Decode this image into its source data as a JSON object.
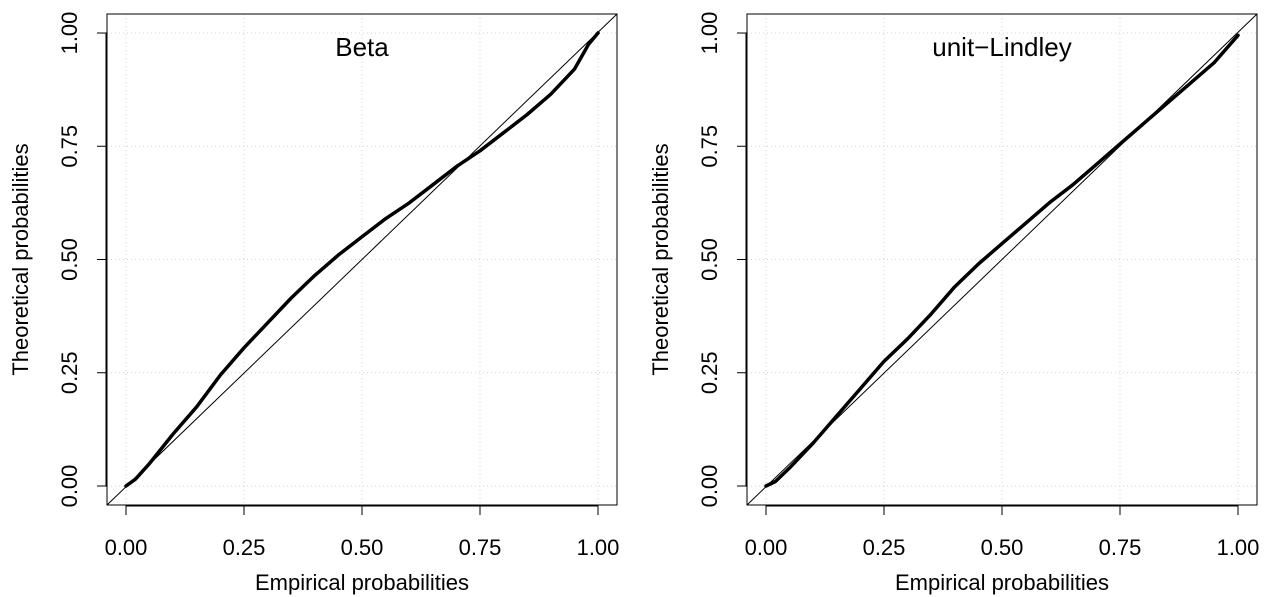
{
  "chart_data": [
    {
      "type": "line",
      "title": "Beta",
      "xlabel": "Empirical probabilities",
      "ylabel": "Theoretical probabilities",
      "xlim": [
        0,
        1
      ],
      "ylim": [
        0,
        1
      ],
      "xticks": [
        "0.00",
        "0.25",
        "0.50",
        "0.75",
        "1.00"
      ],
      "yticks": [
        "0.00",
        "0.25",
        "0.50",
        "0.75",
        "1.00"
      ],
      "grid": true,
      "reference_line": "y = x",
      "series": [
        {
          "x": [
            0.0,
            0.02,
            0.05,
            0.1,
            0.15,
            0.2,
            0.25,
            0.3,
            0.35,
            0.4,
            0.45,
            0.5,
            0.55,
            0.6,
            0.65,
            0.7,
            0.75,
            0.8,
            0.85,
            0.9,
            0.95,
            0.98,
            1.0
          ],
          "y": [
            0.0,
            0.015,
            0.05,
            0.115,
            0.175,
            0.245,
            0.305,
            0.36,
            0.415,
            0.465,
            0.51,
            0.55,
            0.59,
            0.625,
            0.665,
            0.705,
            0.74,
            0.78,
            0.82,
            0.865,
            0.92,
            0.975,
            1.0
          ]
        }
      ]
    },
    {
      "type": "line",
      "title": "unit−Lindley",
      "xlabel": "Empirical probabilities",
      "ylabel": "Theoretical probabilities",
      "xlim": [
        0,
        1
      ],
      "ylim": [
        0,
        1
      ],
      "xticks": [
        "0.00",
        "0.25",
        "0.50",
        "0.75",
        "1.00"
      ],
      "yticks": [
        "0.00",
        "0.25",
        "0.50",
        "0.75",
        "1.00"
      ],
      "grid": true,
      "reference_line": "y = x",
      "series": [
        {
          "x": [
            0.0,
            0.02,
            0.05,
            0.1,
            0.15,
            0.2,
            0.25,
            0.3,
            0.35,
            0.4,
            0.45,
            0.5,
            0.55,
            0.6,
            0.65,
            0.7,
            0.75,
            0.8,
            0.85,
            0.9,
            0.95,
            1.0
          ],
          "y": [
            0.0,
            0.01,
            0.04,
            0.095,
            0.155,
            0.215,
            0.275,
            0.325,
            0.38,
            0.44,
            0.49,
            0.535,
            0.58,
            0.625,
            0.665,
            0.71,
            0.755,
            0.8,
            0.845,
            0.89,
            0.935,
            0.995
          ]
        }
      ]
    }
  ]
}
